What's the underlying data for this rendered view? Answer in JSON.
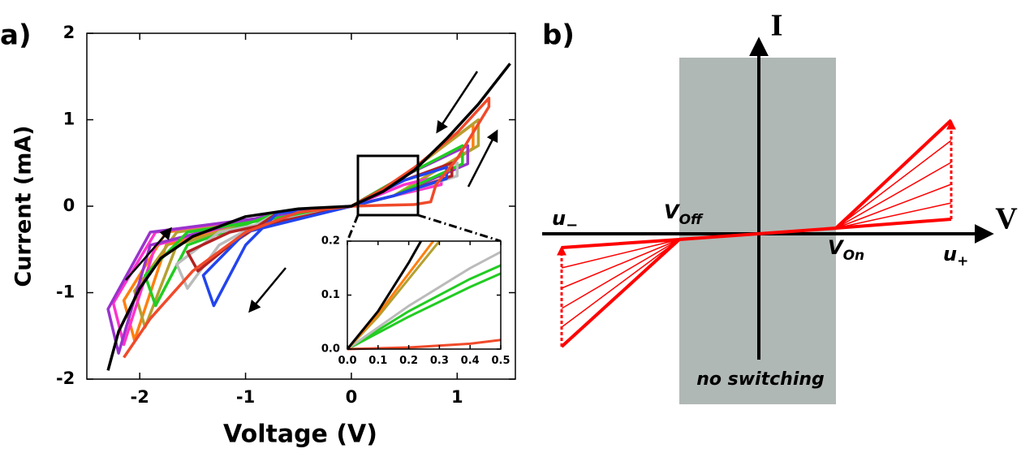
{
  "chart_data": [
    {
      "type": "line",
      "label": "a)",
      "xlabel": "Voltage (V)",
      "ylabel": "Current (mA)",
      "xlim": [
        -2.5,
        1.55
      ],
      "ylim": [
        -2,
        2
      ],
      "xticks": [
        -2,
        -1,
        0,
        1
      ],
      "yticks": [
        -2,
        -1,
        0,
        1,
        2
      ],
      "series": [
        {
          "color": "#ff7f0e",
          "x": [
            0,
            0.4,
            1.15,
            1.15,
            0.5,
            0,
            -0.7,
            -1.75,
            -2.05,
            -2.15,
            -1.75,
            0
          ],
          "values": [
            0,
            0.12,
            0.67,
            0.95,
            0.35,
            0,
            -0.08,
            -0.45,
            -1.55,
            -1.09,
            -0.3,
            0
          ]
        },
        {
          "color": "#b5a030",
          "x": [
            0,
            0.4,
            1.2,
            1.2,
            0.5,
            0,
            -0.7,
            -1.65,
            -1.95,
            -2.05,
            -1.65,
            0
          ],
          "values": [
            0,
            0.12,
            0.7,
            1.0,
            0.35,
            0,
            -0.08,
            -0.45,
            -1.4,
            -0.98,
            -0.3,
            0
          ]
        },
        {
          "color": "#ff33cc",
          "x": [
            0,
            0.4,
            0.85,
            0.85,
            0.5,
            0,
            -0.7,
            -1.85,
            -2.15,
            -2.25,
            -1.85,
            0
          ],
          "values": [
            0,
            0.12,
            0.25,
            0.35,
            0.25,
            0,
            -0.08,
            -0.45,
            -1.6,
            -1.12,
            -0.3,
            0
          ]
        },
        {
          "color": "#9933cc",
          "x": [
            0,
            0.4,
            1.1,
            1.1,
            0.5,
            0,
            -0.7,
            -1.9,
            -2.2,
            -2.3,
            -1.9,
            0
          ],
          "values": [
            0,
            0.12,
            0.49,
            0.7,
            0.35,
            0,
            -0.08,
            -0.45,
            -1.7,
            -1.19,
            -0.3,
            0
          ]
        },
        {
          "color": "#22cc22",
          "x": [
            0,
            0.4,
            1.05,
            1.05,
            0.5,
            0,
            -0.7,
            -1.55,
            -1.85,
            -1.95,
            -1.55,
            0
          ],
          "values": [
            0,
            0.12,
            0.49,
            0.7,
            0.35,
            0,
            -0.08,
            -0.45,
            -1.15,
            -0.8,
            -0.3,
            0
          ]
        },
        {
          "color": "#bbbbbb",
          "x": [
            0,
            0.4,
            1.0,
            1.0,
            0.5,
            0,
            -0.7,
            -1.25,
            -1.55,
            -1.65,
            -1.25,
            0
          ],
          "values": [
            0,
            0.12,
            0.35,
            0.5,
            0.3,
            0,
            -0.08,
            -0.45,
            -0.95,
            -0.67,
            -0.3,
            0
          ]
        },
        {
          "color": "#b22222",
          "x": [
            0,
            0.4,
            0.95,
            0.95,
            0.5,
            0,
            -0.7,
            -1.15,
            -1.45,
            -1.55,
            -1.15,
            0
          ],
          "values": [
            0,
            0.12,
            0.35,
            0.5,
            0.3,
            0,
            -0.08,
            -0.45,
            -0.75,
            -0.53,
            -0.3,
            0
          ]
        },
        {
          "color": "#2244ee",
          "x": [
            0,
            0.4,
            0.9,
            0.9,
            0.5,
            0,
            -0.7,
            -1.0,
            -1.3,
            -1.4,
            -1.0,
            0
          ],
          "values": [
            0,
            0.12,
            0.32,
            0.45,
            0.3,
            0,
            -0.08,
            -0.45,
            -1.15,
            -0.8,
            -0.3,
            0
          ]
        },
        {
          "color": "#f04a2a",
          "x": [
            -2.15,
            -1.9,
            -1.5,
            -1,
            -0.5,
            0,
            0.3,
            0.6,
            0.75,
            0.8,
            1.0,
            1.3,
            1.3,
            1.0,
            0.6,
            0.3,
            0
          ],
          "values": [
            -1.75,
            -1.3,
            -0.75,
            -0.3,
            -0.07,
            0,
            0.01,
            0.02,
            0.05,
            0.25,
            0.55,
            1.15,
            1.25,
            0.85,
            0.45,
            0.2,
            0
          ]
        },
        {
          "color": "#000000",
          "x": [
            -2.3,
            -2.2,
            -2.0,
            -1.8,
            -1.5,
            -1.0,
            -0.5,
            0,
            0.3,
            0.6,
            0.9,
            1.2,
            1.5
          ],
          "values": [
            -1.9,
            -1.45,
            -0.95,
            -0.6,
            -0.35,
            -0.12,
            -0.03,
            0,
            0.17,
            0.42,
            0.78,
            1.18,
            1.65
          ]
        }
      ]
    },
    {
      "type": "line",
      "xlim": [
        0,
        0.5
      ],
      "ylim": [
        0,
        0.2
      ],
      "xticks": [
        {
          "value": 0,
          "label": "0.0"
        },
        0.1,
        0.2,
        0.3,
        0.4,
        0.5
      ],
      "yticks": [
        {
          "value": 0,
          "label": "0.0"
        },
        0.1,
        0.2
      ],
      "series": [
        {
          "color": "#22cc22",
          "x": [
            0,
            0.2,
            0.4,
            0.5
          ],
          "values": [
            0,
            0.06,
            0.115,
            0.14
          ]
        },
        {
          "color": "#22cc22",
          "x": [
            0,
            0.2,
            0.4,
            0.5
          ],
          "values": [
            0,
            0.07,
            0.13,
            0.155
          ]
        },
        {
          "color": "#bbbbbb",
          "x": [
            0,
            0.2,
            0.4,
            0.5
          ],
          "values": [
            0,
            0.08,
            0.15,
            0.18
          ]
        },
        {
          "color": "#b5a030",
          "x": [
            0,
            0.1,
            0.2,
            0.3
          ],
          "values": [
            0,
            0.06,
            0.13,
            0.2
          ]
        },
        {
          "color": "#ff7f0e",
          "x": [
            0,
            0.1,
            0.2,
            0.28
          ],
          "values": [
            0,
            0.065,
            0.14,
            0.2
          ]
        },
        {
          "color": "#f04a2a",
          "x": [
            0,
            0.2,
            0.4,
            0.5
          ],
          "values": [
            0,
            0.003,
            0.01,
            0.017
          ]
        },
        {
          "color": "#000000",
          "x": [
            0,
            0.1,
            0.2,
            0.24
          ],
          "values": [
            0,
            0.07,
            0.16,
            0.2
          ]
        }
      ]
    }
  ],
  "diagram": {
    "label": "b)",
    "x_axis": "V",
    "y_axis": "I",
    "u_minus": {
      "main": "u",
      "sub": "−"
    },
    "v_off": {
      "main": "V",
      "sub": "Off"
    },
    "v_on": {
      "main": "V",
      "sub": "On"
    },
    "u_plus": {
      "main": "u",
      "sub": "+"
    },
    "region": "no switching"
  }
}
